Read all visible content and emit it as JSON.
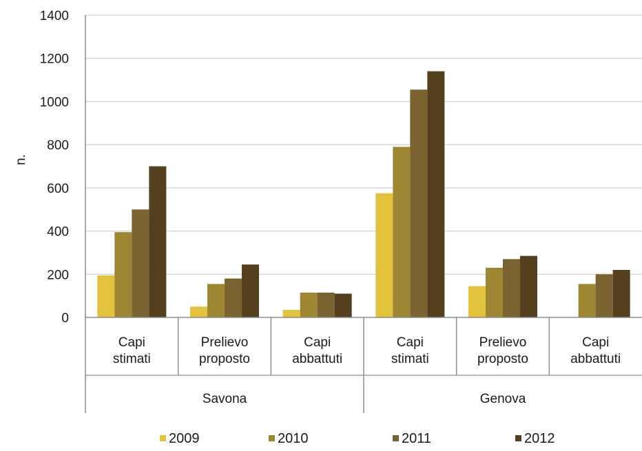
{
  "chart_data": {
    "type": "bar",
    "ylabel": "n.",
    "ylim": [
      0,
      1400
    ],
    "yticks": [
      0,
      200,
      400,
      600,
      800,
      1000,
      1200,
      1400
    ],
    "grid": true,
    "legend_position": "bottom",
    "groups": [
      {
        "name": "Savona",
        "categories": [
          [
            "Capi",
            "stimati"
          ],
          [
            "Prelievo",
            "proposto"
          ],
          [
            "Capi",
            "abbattuti"
          ]
        ]
      },
      {
        "name": "Genova",
        "categories": [
          [
            "Capi",
            "stimati"
          ],
          [
            "Prelievo",
            "proposto"
          ],
          [
            "Capi",
            "abbattuti"
          ]
        ]
      }
    ],
    "series": [
      {
        "name": "2009",
        "color": "#e3c23d",
        "values": [
          195,
          50,
          35,
          575,
          145,
          0
        ]
      },
      {
        "name": "2010",
        "color": "#9e8632",
        "values": [
          395,
          155,
          115,
          790,
          230,
          155
        ]
      },
      {
        "name": "2011",
        "color": "#7a6231",
        "values": [
          500,
          180,
          115,
          1055,
          270,
          200
        ]
      },
      {
        "name": "2012",
        "color": "#54401f",
        "values": [
          700,
          245,
          110,
          1140,
          285,
          220
        ]
      }
    ]
  }
}
